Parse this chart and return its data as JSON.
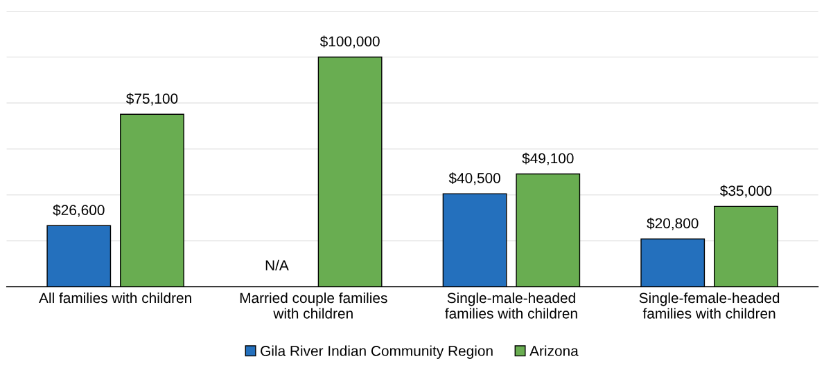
{
  "chart_data": {
    "type": "bar",
    "categories": [
      "All families with children",
      "Married couple families\nwith children",
      "Single-male-headed\nfamilies with children",
      "Single-female-headed\nfamilies with children"
    ],
    "series": [
      {
        "name": "Gila River Indian Community Region",
        "color": "#2470bd",
        "values": [
          26600,
          null,
          40500,
          20800
        ],
        "value_labels": [
          "$26,600",
          null,
          "$40,500",
          "$20,800"
        ]
      },
      {
        "name": "Arizona",
        "color": "#69ad51",
        "values": [
          75100,
          100000,
          49100,
          35000
        ],
        "value_labels": [
          "$75,100",
          "$100,000",
          "$49,100",
          "$35,000"
        ]
      }
    ],
    "ylim": [
      0,
      120000
    ],
    "yticks": [
      {
        "value": 0,
        "label": null
      },
      {
        "value": 20000,
        "label": null
      },
      {
        "value": 40000,
        "label": null
      },
      {
        "value": 60000,
        "label": null
      },
      {
        "value": 80000,
        "label": null
      },
      {
        "value": 100000,
        "label": null
      },
      {
        "value": 120000,
        "label": null
      }
    ],
    "tick_labels": "x",
    "grid": "y",
    "legend": "bottom",
    "annotations": [
      "N/A"
    ]
  }
}
